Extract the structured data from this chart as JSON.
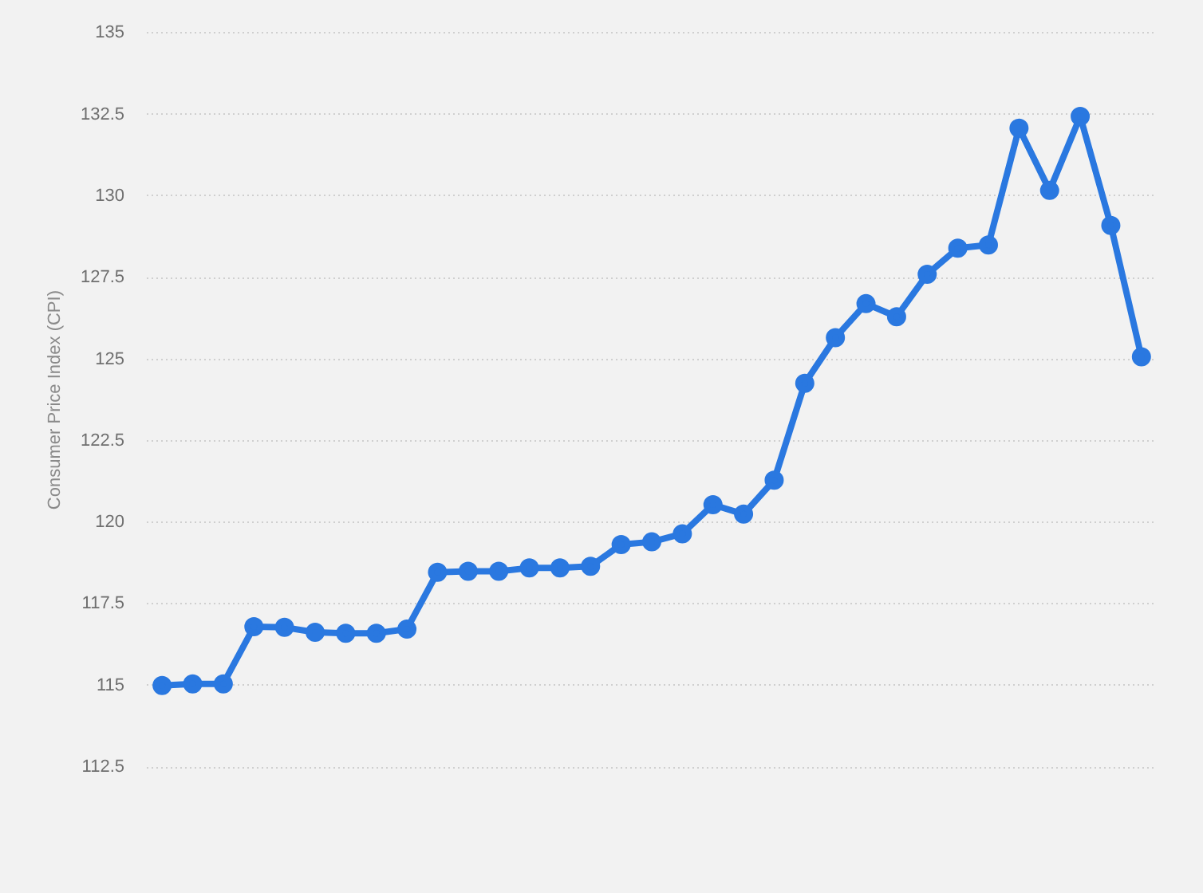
{
  "chart_data": {
    "type": "line",
    "categories": [
      null,
      null,
      null,
      null,
      null,
      null,
      null,
      null,
      null,
      null,
      null,
      null,
      null,
      null,
      null,
      null,
      null,
      null,
      null,
      null,
      null,
      null,
      null,
      null,
      null,
      null,
      null,
      null,
      null,
      null,
      null,
      null,
      null
    ],
    "values": [
      115.0,
      115.05,
      115.05,
      116.8,
      116.78,
      116.63,
      116.6,
      116.6,
      116.73,
      118.47,
      118.5,
      118.5,
      118.6,
      118.6,
      118.65,
      119.32,
      119.4,
      119.65,
      120.54,
      120.25,
      121.29,
      124.26,
      125.66,
      126.7,
      126.3,
      127.6,
      128.4,
      128.5,
      132.08,
      130.17,
      132.44,
      129.1,
      125.07
    ],
    "color": "#2a78e0",
    "ylabel": "Consumer Price Index (CPI)",
    "ylim": [
      112.5,
      135
    ],
    "yticks": [
      112.5,
      115,
      117.5,
      120,
      122.5,
      125,
      127.5,
      130,
      132.5,
      135
    ],
    "grid": "y",
    "tick_labels": "y",
    "marker": "circle",
    "line_style": "solid"
  }
}
